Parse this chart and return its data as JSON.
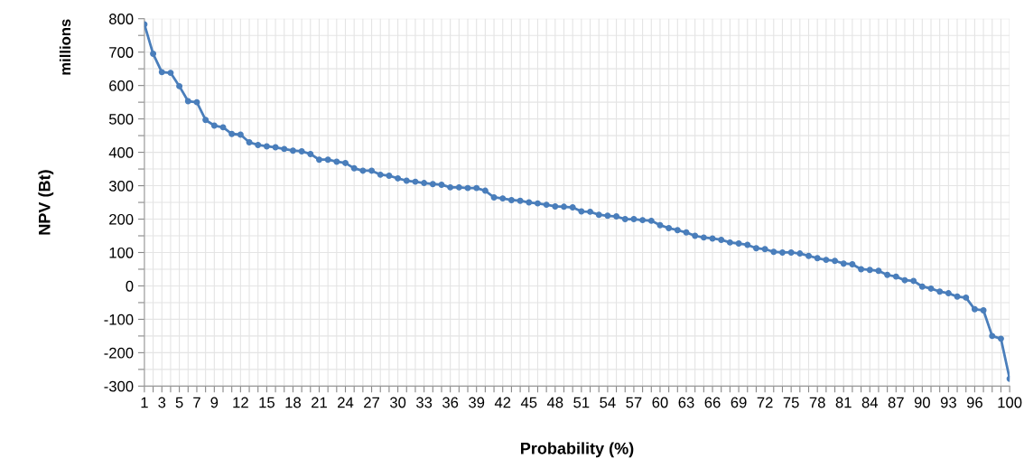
{
  "chart_data": {
    "type": "line",
    "xlabel": "Probability (%)",
    "ylabel": "NPV (Bt)",
    "annotations": [
      "millions"
    ],
    "x": [
      1,
      2,
      3,
      4,
      5,
      6,
      7,
      8,
      9,
      10,
      11,
      12,
      13,
      14,
      15,
      16,
      17,
      18,
      19,
      20,
      21,
      22,
      23,
      24,
      25,
      26,
      27,
      28,
      29,
      30,
      31,
      32,
      33,
      34,
      35,
      36,
      37,
      38,
      39,
      40,
      41,
      42,
      43,
      44,
      45,
      46,
      47,
      48,
      49,
      50,
      51,
      52,
      53,
      54,
      55,
      56,
      57,
      58,
      59,
      60,
      61,
      62,
      63,
      64,
      65,
      66,
      67,
      68,
      69,
      70,
      71,
      72,
      73,
      74,
      75,
      76,
      77,
      78,
      79,
      80,
      81,
      82,
      83,
      84,
      85,
      86,
      87,
      88,
      89,
      90,
      91,
      92,
      93,
      94,
      95,
      96,
      97,
      98,
      99,
      100
    ],
    "series": [
      {
        "color": "#4a7ebb",
        "values": [
          783,
          695,
          640,
          638,
          598,
          553,
          550,
          497,
          480,
          475,
          455,
          453,
          430,
          422,
          418,
          415,
          410,
          405,
          403,
          395,
          378,
          378,
          372,
          368,
          352,
          345,
          345,
          333,
          330,
          322,
          315,
          312,
          308,
          305,
          303,
          295,
          295,
          293,
          293,
          285,
          265,
          262,
          257,
          255,
          250,
          247,
          243,
          238,
          237,
          235,
          223,
          222,
          213,
          210,
          208,
          200,
          200,
          197,
          195,
          182,
          173,
          167,
          160,
          150,
          145,
          142,
          138,
          130,
          127,
          123,
          113,
          110,
          102,
          100,
          100,
          97,
          90,
          83,
          78,
          75,
          67,
          65,
          50,
          48,
          45,
          33,
          28,
          17,
          15,
          -2,
          -8,
          -17,
          -22,
          -32,
          -35,
          -70,
          -73,
          -150,
          -158,
          -278
        ]
      }
    ],
    "marker": "circle",
    "line_style": "solid",
    "grid": true,
    "xlim": [
      1,
      100
    ],
    "ylim": [
      -300,
      800
    ],
    "xticks": [
      1,
      {
        "value": 2,
        "label": null
      },
      3,
      {
        "value": 4,
        "label": null
      },
      5,
      {
        "value": 6,
        "label": null
      },
      7,
      {
        "value": 8,
        "label": null
      },
      9,
      {
        "value": 10,
        "label": null
      },
      {
        "value": 11,
        "label": null
      },
      12,
      {
        "value": 13,
        "label": null
      },
      {
        "value": 14,
        "label": null
      },
      15,
      {
        "value": 16,
        "label": null
      },
      {
        "value": 17,
        "label": null
      },
      18,
      {
        "value": 19,
        "label": null
      },
      {
        "value": 20,
        "label": null
      },
      21,
      {
        "value": 22,
        "label": null
      },
      {
        "value": 23,
        "label": null
      },
      24,
      {
        "value": 25,
        "label": null
      },
      {
        "value": 26,
        "label": null
      },
      27,
      {
        "value": 28,
        "label": null
      },
      {
        "value": 29,
        "label": null
      },
      30,
      {
        "value": 31,
        "label": null
      },
      {
        "value": 32,
        "label": null
      },
      33,
      {
        "value": 34,
        "label": null
      },
      {
        "value": 35,
        "label": null
      },
      36,
      {
        "value": 37,
        "label": null
      },
      {
        "value": 38,
        "label": null
      },
      39,
      {
        "value": 40,
        "label": null
      },
      {
        "value": 41,
        "label": null
      },
      42,
      {
        "value": 43,
        "label": null
      },
      {
        "value": 44,
        "label": null
      },
      45,
      {
        "value": 46,
        "label": null
      },
      {
        "value": 47,
        "label": null
      },
      48,
      {
        "value": 49,
        "label": null
      },
      {
        "value": 50,
        "label": null
      },
      51,
      {
        "value": 52,
        "label": null
      },
      {
        "value": 53,
        "label": null
      },
      54,
      {
        "value": 55,
        "label": null
      },
      {
        "value": 56,
        "label": null
      },
      57,
      {
        "value": 58,
        "label": null
      },
      {
        "value": 59,
        "label": null
      },
      60,
      {
        "value": 61,
        "label": null
      },
      {
        "value": 62,
        "label": null
      },
      63,
      {
        "value": 64,
        "label": null
      },
      {
        "value": 65,
        "label": null
      },
      66,
      {
        "value": 67,
        "label": null
      },
      {
        "value": 68,
        "label": null
      },
      69,
      {
        "value": 70,
        "label": null
      },
      {
        "value": 71,
        "label": null
      },
      72,
      {
        "value": 73,
        "label": null
      },
      {
        "value": 74,
        "label": null
      },
      75,
      {
        "value": 76,
        "label": null
      },
      {
        "value": 77,
        "label": null
      },
      78,
      {
        "value": 79,
        "label": null
      },
      {
        "value": 80,
        "label": null
      },
      81,
      {
        "value": 82,
        "label": null
      },
      {
        "value": 83,
        "label": null
      },
      84,
      {
        "value": 85,
        "label": null
      },
      {
        "value": 86,
        "label": null
      },
      87,
      {
        "value": 88,
        "label": null
      },
      {
        "value": 89,
        "label": null
      },
      90,
      {
        "value": 91,
        "label": null
      },
      {
        "value": 92,
        "label": null
      },
      93,
      {
        "value": 94,
        "label": null
      },
      {
        "value": 95,
        "label": null
      },
      96,
      {
        "value": 97,
        "label": null
      },
      {
        "value": 98,
        "label": null
      },
      {
        "value": 99,
        "label": null
      },
      100
    ],
    "yticks": [
      -300,
      {
        "value": -250,
        "label": null
      },
      -200,
      {
        "value": -150,
        "label": null
      },
      -100,
      {
        "value": -50,
        "label": null
      },
      0,
      {
        "value": 50,
        "label": null
      },
      100,
      {
        "value": 150,
        "label": null
      },
      200,
      {
        "value": 250,
        "label": null
      },
      300,
      {
        "value": 350,
        "label": null
      },
      400,
      {
        "value": 450,
        "label": null
      },
      500,
      {
        "value": 550,
        "label": null
      },
      600,
      {
        "value": 650,
        "label": null
      },
      700,
      {
        "value": 750,
        "label": null
      },
      800
    ]
  }
}
